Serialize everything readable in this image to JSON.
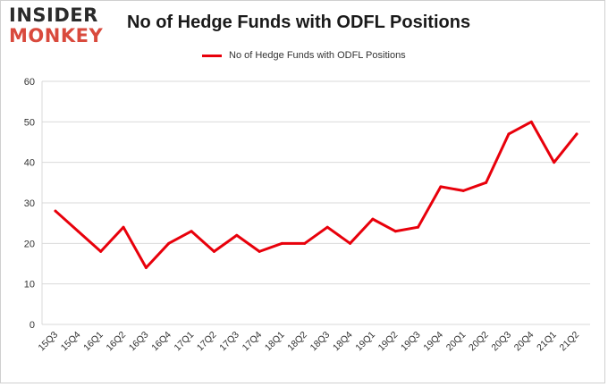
{
  "logo": {
    "line1": "INSIDER",
    "line2": "MONKEY"
  },
  "chart_data": {
    "type": "line",
    "title": "No of Hedge Funds with ODFL Positions",
    "xlabel": "",
    "ylabel": "",
    "ylim": [
      0,
      60
    ],
    "yticks": [
      0,
      10,
      20,
      30,
      40,
      50,
      60
    ],
    "grid": true,
    "legend_position": "top-center",
    "categories": [
      "15Q3",
      "15Q4",
      "16Q1",
      "16Q2",
      "16Q3",
      "16Q4",
      "17Q1",
      "17Q2",
      "17Q3",
      "17Q4",
      "18Q1",
      "18Q2",
      "18Q3",
      "18Q4",
      "19Q1",
      "19Q2",
      "19Q3",
      "19Q4",
      "20Q1",
      "20Q2",
      "20Q3",
      "20Q4",
      "21Q1",
      "21Q2"
    ],
    "series": [
      {
        "name": "No of Hedge Funds with ODFL Positions",
        "color": "#e8000b",
        "values": [
          28,
          23,
          18,
          24,
          14,
          20,
          23,
          18,
          22,
          18,
          20,
          20,
          24,
          20,
          26,
          23,
          24,
          34,
          33,
          35,
          47,
          50,
          40,
          47
        ]
      }
    ]
  }
}
